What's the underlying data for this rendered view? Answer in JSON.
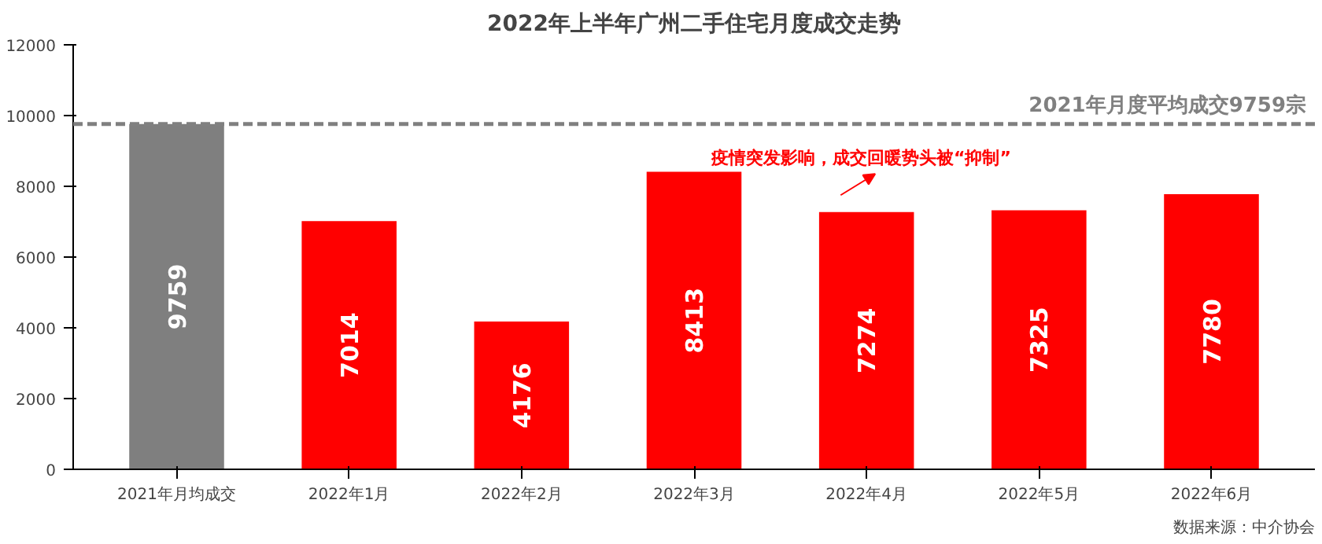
{
  "chart_data": {
    "type": "bar",
    "title": "2022年上半年广州二手住宅月度成交走势",
    "categories": [
      "2021年月均成交",
      "2022年1月",
      "2022年2月",
      "2022年3月",
      "2022年4月",
      "2022年5月",
      "2022年6月"
    ],
    "values": [
      9759,
      7014,
      4176,
      8413,
      7274,
      7325,
      7780
    ],
    "colors": [
      "#7f7f7f",
      "#ff0000",
      "#ff0000",
      "#ff0000",
      "#ff0000",
      "#ff0000",
      "#ff0000"
    ],
    "ylim": [
      0,
      12000
    ],
    "yticks": [
      0,
      2000,
      4000,
      6000,
      8000,
      10000,
      12000
    ],
    "grid": false,
    "data_labels": true,
    "ref_lines": [
      {
        "axis": "y",
        "value": 9759,
        "label": "2021年月度平均成交9759宗",
        "color": "#808080",
        "line_style": "dashed"
      }
    ],
    "annotations": [
      "疫情突发影响，成交回暖势头被“抑制”",
      "数据来源：中介协会"
    ]
  }
}
